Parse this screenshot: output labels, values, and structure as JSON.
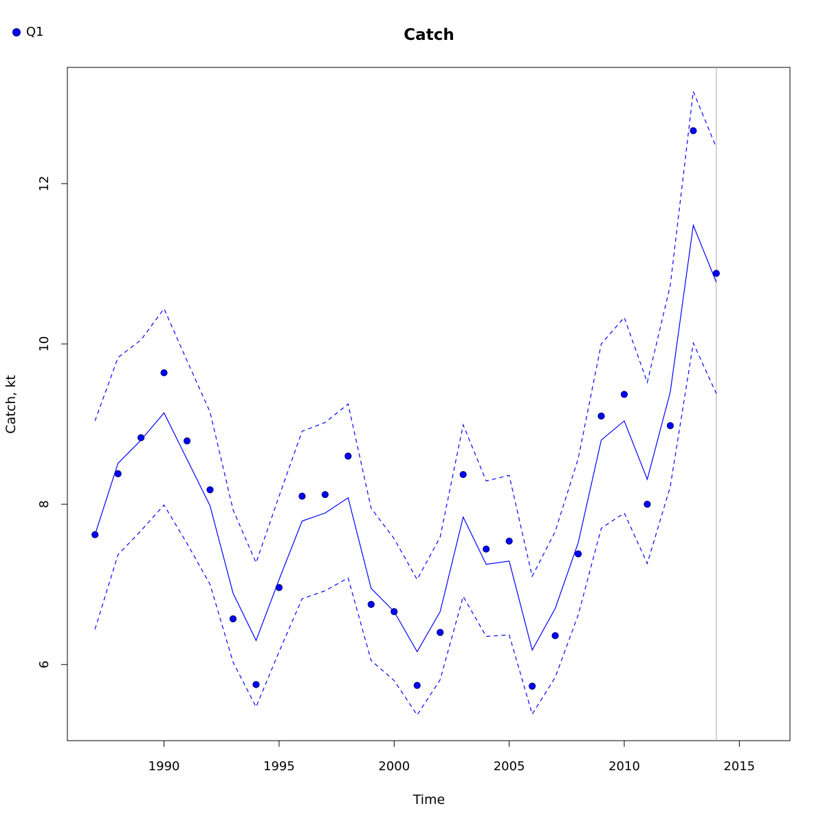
{
  "chart_data": {
    "type": "line",
    "title": "Catch",
    "xlabel": "Time",
    "ylabel": "Catch, kt",
    "xlim": [
      1985.8,
      2017.2
    ],
    "ylim": [
      5.05,
      13.45
    ],
    "xticks": [
      1990,
      1995,
      2000,
      2005,
      2010,
      2015
    ],
    "yticks": [
      6,
      8,
      10,
      12
    ],
    "x": [
      1987,
      1988,
      1989,
      1990,
      1991,
      1992,
      1993,
      1994,
      1995,
      1996,
      1997,
      1998,
      1999,
      2000,
      2001,
      2002,
      2003,
      2004,
      2005,
      2006,
      2007,
      2008,
      2009,
      2010,
      2011,
      2012,
      2013,
      2014
    ],
    "series": [
      {
        "name": "Q1",
        "role": "observed",
        "style": "points",
        "color": "#0000ff",
        "values": [
          7.62,
          8.38,
          8.83,
          9.64,
          8.79,
          8.18,
          6.57,
          5.75,
          6.96,
          8.1,
          8.12,
          8.6,
          6.75,
          6.66,
          5.74,
          6.4,
          8.37,
          7.44,
          7.54,
          5.73,
          6.36,
          7.38,
          9.1,
          9.37,
          8.0,
          8.98,
          12.66,
          10.88
        ]
      },
      {
        "role": "fit",
        "style": "solid",
        "color": "#0000ff",
        "values": [
          7.62,
          8.51,
          8.8,
          9.14,
          8.56,
          7.98,
          6.89,
          6.3,
          7.06,
          7.79,
          7.89,
          8.08,
          6.95,
          6.66,
          6.16,
          6.66,
          7.84,
          7.25,
          7.29,
          6.18,
          6.7,
          7.52,
          8.8,
          9.04,
          8.31,
          9.4,
          11.48,
          10.77
        ]
      },
      {
        "role": "upper bound",
        "style": "dashed",
        "color": "#0000ff",
        "values": [
          9.04,
          9.83,
          10.05,
          10.44,
          9.79,
          9.15,
          7.93,
          7.27,
          8.1,
          8.91,
          9.02,
          9.25,
          7.95,
          7.57,
          7.06,
          7.59,
          8.99,
          8.29,
          8.36,
          7.1,
          7.66,
          8.57,
          10.0,
          10.33,
          9.52,
          10.73,
          13.15,
          12.45
        ]
      },
      {
        "role": "lower bound",
        "style": "dashed",
        "color": "#0000ff",
        "values": [
          6.44,
          7.37,
          7.67,
          7.99,
          7.51,
          7.0,
          6.03,
          5.47,
          6.16,
          6.82,
          6.92,
          7.08,
          6.05,
          5.8,
          5.37,
          5.81,
          6.85,
          6.35,
          6.37,
          5.38,
          5.84,
          6.62,
          7.7,
          7.89,
          7.26,
          8.22,
          10.01,
          9.38
        ]
      }
    ],
    "vline": {
      "x": 2014,
      "color": "#aaaaaa"
    },
    "legend": {
      "position": "top-left",
      "label": "Q1"
    },
    "grid": false
  }
}
